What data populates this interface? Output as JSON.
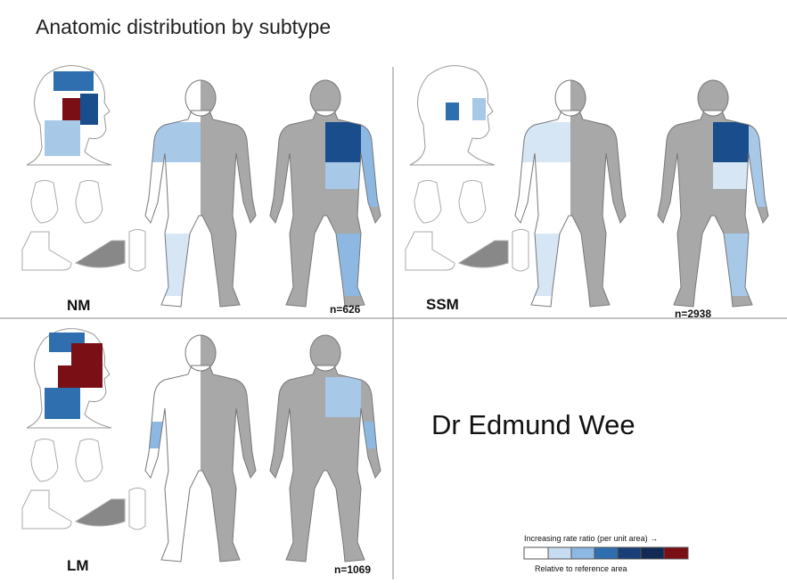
{
  "header": {
    "title": "Anatomic distribution by subtype"
  },
  "panels": [
    {
      "label": "NM",
      "n": "n=626"
    },
    {
      "label": "SSM",
      "n": "n=2938"
    },
    {
      "label": "LM",
      "n": "n=1069"
    }
  ],
  "watermark": "Dr Edmund Wee",
  "legend": {
    "title": "Increasing rate ratio  (per unit area) →",
    "caption": "Relative to reference area"
  }
}
